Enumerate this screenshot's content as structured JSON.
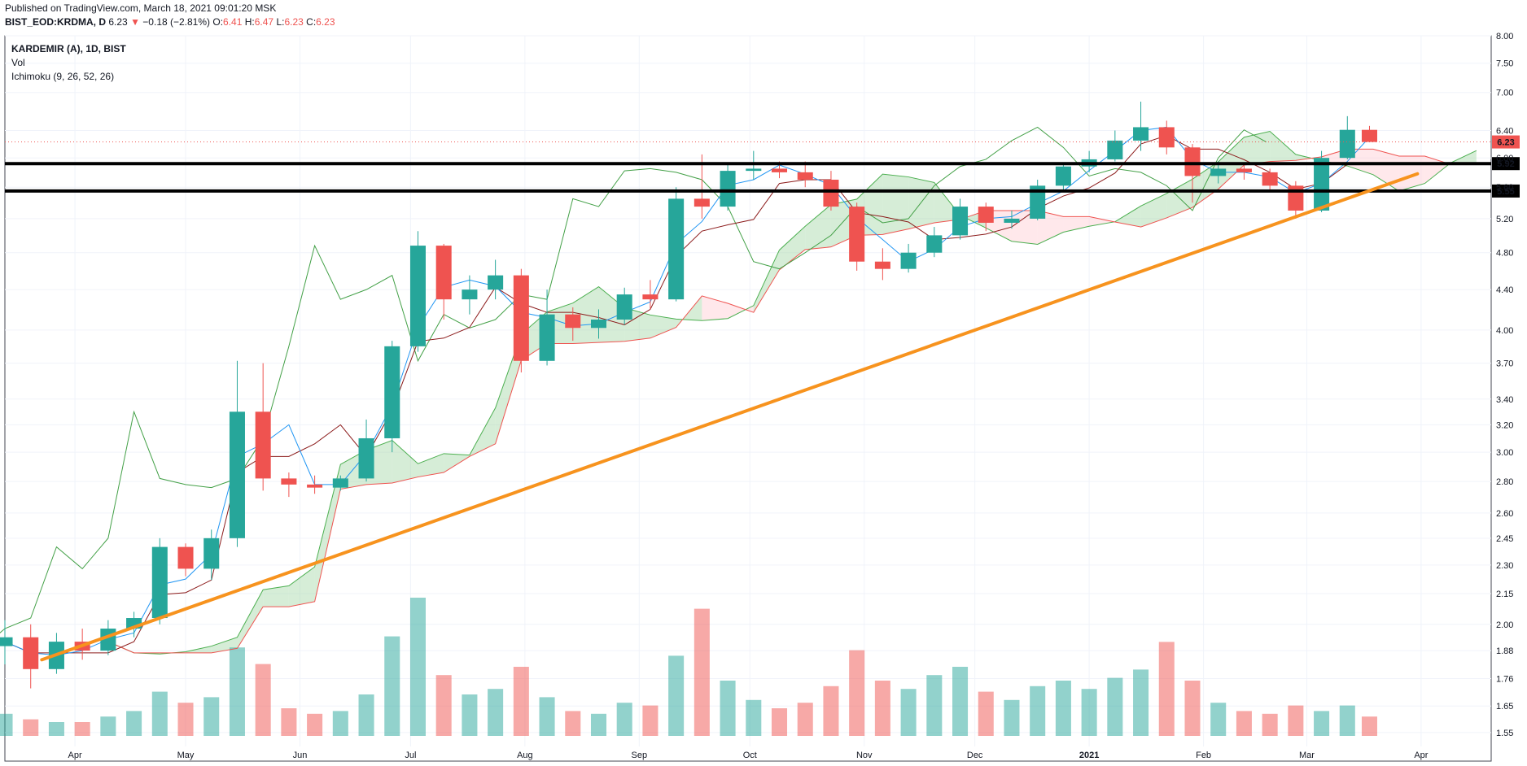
{
  "header": {
    "published": "Published on TradingView.com, March 18, 2021 09:01:20 MSK",
    "symbol": "BIST_EOD:KRDMA, D",
    "last": "6.23",
    "arrow": "▼",
    "change": "−0.18 (−2.81%)",
    "o_label": "O:",
    "o_val": "6.41",
    "h_label": "H:",
    "h_val": "6.47",
    "l_label": "L:",
    "l_val": "6.23",
    "c_label": "C:",
    "c_val": "6.23"
  },
  "legend": {
    "title": "KARDEMIR (A), 1D, BIST",
    "vol": "Vol",
    "ichimoku": "Ichimoku (9, 26, 52, 26)"
  },
  "colors": {
    "up": "#26a69a",
    "down": "#ef5350",
    "tenkan": "#2196f3",
    "kijun": "#8b1a1a",
    "lagging": "#43a047",
    "span_a": "#4caf50",
    "span_b": "#ef5350",
    "cloud_up": "#a5d6a7",
    "cloud_down": "#ffcdd2",
    "trendline": "#f7931e",
    "level": "#000000"
  },
  "chart_data": {
    "type": "candlestick",
    "title": "KARDEMIR (A), 1D, BIST",
    "y_scale": "log",
    "ylim": [
      1.5,
      8.0
    ],
    "y_ticks": [
      "8.00",
      "7.50",
      "7.00",
      "6.40",
      "6.00",
      "5.60",
      "5.20",
      "4.80",
      "4.40",
      "4.00",
      "3.70",
      "3.40",
      "3.20",
      "3.00",
      "2.80",
      "2.60",
      "2.45",
      "2.30",
      "2.15",
      "2.00",
      "1.88",
      "1.76",
      "1.65",
      "1.55"
    ],
    "x_ticks": [
      "Apr",
      "May",
      "Jun",
      "Jul",
      "Aug",
      "Sep",
      "Oct",
      "Nov",
      "Dec",
      "2021",
      "Feb",
      "Mar",
      "Apr"
    ],
    "x_range": [
      "2020-03-13",
      "2021-04-20"
    ],
    "last_price": {
      "value": 6.23,
      "label": "6.23"
    },
    "horizontal_levels": [
      {
        "value": 5.92,
        "label": "5.92"
      },
      {
        "value": 5.55,
        "label": "5.55"
      }
    ],
    "trendline": {
      "start": [
        "2020-03-23",
        1.84
      ],
      "end": [
        "2021-03-31",
        5.78
      ]
    },
    "ohlc": [
      {
        "date": "2020-03-13",
        "open": 1.9,
        "high": 2.02,
        "low": 1.82,
        "close": 1.94
      },
      {
        "date": "2020-03-20",
        "open": 1.94,
        "high": 2.0,
        "low": 1.72,
        "close": 1.8
      },
      {
        "date": "2020-03-27",
        "open": 1.8,
        "high": 1.96,
        "low": 1.78,
        "close": 1.92
      },
      {
        "date": "2020-04-03",
        "open": 1.92,
        "high": 1.98,
        "low": 1.84,
        "close": 1.88
      },
      {
        "date": "2020-04-10",
        "open": 1.88,
        "high": 2.02,
        "low": 1.86,
        "close": 1.98
      },
      {
        "date": "2020-04-17",
        "open": 1.98,
        "high": 2.06,
        "low": 1.94,
        "close": 2.03
      },
      {
        "date": "2020-04-24",
        "open": 2.03,
        "high": 2.45,
        "low": 2.0,
        "close": 2.4
      },
      {
        "date": "2020-05-01",
        "open": 2.4,
        "high": 2.42,
        "low": 2.24,
        "close": 2.28
      },
      {
        "date": "2020-05-08",
        "open": 2.28,
        "high": 2.5,
        "low": 2.22,
        "close": 2.45
      },
      {
        "date": "2020-05-15",
        "open": 2.45,
        "high": 3.72,
        "low": 2.4,
        "close": 3.3
      },
      {
        "date": "2020-05-22",
        "open": 3.3,
        "high": 3.7,
        "low": 2.74,
        "close": 2.82
      },
      {
        "date": "2020-05-29",
        "open": 2.82,
        "high": 2.86,
        "low": 2.7,
        "close": 2.78
      },
      {
        "date": "2020-06-05",
        "open": 2.78,
        "high": 2.84,
        "low": 2.72,
        "close": 2.76
      },
      {
        "date": "2020-06-12",
        "open": 2.76,
        "high": 2.84,
        "low": 2.74,
        "close": 2.82
      },
      {
        "date": "2020-06-19",
        "open": 2.82,
        "high": 3.24,
        "low": 2.8,
        "close": 3.1
      },
      {
        "date": "2020-06-26",
        "open": 3.1,
        "high": 3.9,
        "low": 3.0,
        "close": 3.85
      },
      {
        "date": "2020-07-03",
        "open": 3.85,
        "high": 5.05,
        "low": 3.8,
        "close": 4.88
      },
      {
        "date": "2020-07-10",
        "open": 4.88,
        "high": 4.9,
        "low": 4.1,
        "close": 4.3
      },
      {
        "date": "2020-07-17",
        "open": 4.3,
        "high": 4.55,
        "low": 4.15,
        "close": 4.4
      },
      {
        "date": "2020-07-24",
        "open": 4.4,
        "high": 4.72,
        "low": 4.3,
        "close": 4.55
      },
      {
        "date": "2020-07-31",
        "open": 4.55,
        "high": 4.62,
        "low": 3.62,
        "close": 3.72
      },
      {
        "date": "2020-08-07",
        "open": 3.72,
        "high": 4.4,
        "low": 3.68,
        "close": 4.15
      },
      {
        "date": "2020-08-14",
        "open": 4.15,
        "high": 4.22,
        "low": 3.9,
        "close": 4.02
      },
      {
        "date": "2020-08-21",
        "open": 4.02,
        "high": 4.2,
        "low": 3.92,
        "close": 4.1
      },
      {
        "date": "2020-08-28",
        "open": 4.1,
        "high": 4.42,
        "low": 4.05,
        "close": 4.35
      },
      {
        "date": "2020-09-04",
        "open": 4.35,
        "high": 4.5,
        "low": 4.2,
        "close": 4.3
      },
      {
        "date": "2020-09-11",
        "open": 4.3,
        "high": 5.6,
        "low": 4.28,
        "close": 5.45
      },
      {
        "date": "2020-09-18",
        "open": 5.45,
        "high": 6.05,
        "low": 5.2,
        "close": 5.35
      },
      {
        "date": "2020-09-25",
        "open": 5.35,
        "high": 5.9,
        "low": 5.3,
        "close": 5.82
      },
      {
        "date": "2020-10-02",
        "open": 5.82,
        "high": 6.1,
        "low": 5.7,
        "close": 5.85
      },
      {
        "date": "2020-10-09",
        "open": 5.85,
        "high": 5.95,
        "low": 5.72,
        "close": 5.8
      },
      {
        "date": "2020-10-16",
        "open": 5.8,
        "high": 5.95,
        "low": 5.6,
        "close": 5.7
      },
      {
        "date": "2020-10-23",
        "open": 5.7,
        "high": 5.82,
        "low": 5.3,
        "close": 5.35
      },
      {
        "date": "2020-10-30",
        "open": 5.35,
        "high": 5.4,
        "low": 4.6,
        "close": 4.7
      },
      {
        "date": "2020-11-06",
        "open": 4.7,
        "high": 4.85,
        "low": 4.5,
        "close": 4.62
      },
      {
        "date": "2020-11-13",
        "open": 4.62,
        "high": 4.9,
        "low": 4.58,
        "close": 4.8
      },
      {
        "date": "2020-11-20",
        "open": 4.8,
        "high": 5.1,
        "low": 4.75,
        "close": 5.0
      },
      {
        "date": "2020-11-27",
        "open": 5.0,
        "high": 5.45,
        "low": 4.95,
        "close": 5.35
      },
      {
        "date": "2020-12-04",
        "open": 5.35,
        "high": 5.4,
        "low": 5.05,
        "close": 5.15
      },
      {
        "date": "2020-12-11",
        "open": 5.15,
        "high": 5.3,
        "low": 5.08,
        "close": 5.2
      },
      {
        "date": "2020-12-18",
        "open": 5.2,
        "high": 5.7,
        "low": 5.18,
        "close": 5.62
      },
      {
        "date": "2020-12-25",
        "open": 5.62,
        "high": 5.92,
        "low": 5.55,
        "close": 5.88
      },
      {
        "date": "2021-01-01",
        "open": 5.88,
        "high": 6.1,
        "low": 5.8,
        "close": 5.98
      },
      {
        "date": "2021-01-08",
        "open": 5.98,
        "high": 6.4,
        "low": 5.95,
        "close": 6.25
      },
      {
        "date": "2021-01-15",
        "open": 6.25,
        "high": 6.85,
        "low": 6.1,
        "close": 6.45
      },
      {
        "date": "2021-01-22",
        "open": 6.45,
        "high": 6.55,
        "low": 6.05,
        "close": 6.15
      },
      {
        "date": "2021-01-29",
        "open": 6.15,
        "high": 6.2,
        "low": 5.4,
        "close": 5.75
      },
      {
        "date": "2021-02-05",
        "open": 5.75,
        "high": 5.95,
        "low": 5.65,
        "close": 5.85
      },
      {
        "date": "2021-02-12",
        "open": 5.85,
        "high": 5.92,
        "low": 5.7,
        "close": 5.8
      },
      {
        "date": "2021-02-19",
        "open": 5.8,
        "high": 5.85,
        "low": 5.55,
        "close": 5.62
      },
      {
        "date": "2021-02-26",
        "open": 5.62,
        "high": 5.68,
        "low": 5.2,
        "close": 5.3
      },
      {
        "date": "2021-03-05",
        "open": 5.3,
        "high": 6.1,
        "low": 5.28,
        "close": 6.0
      },
      {
        "date": "2021-03-12",
        "open": 6.0,
        "high": 6.62,
        "low": 5.98,
        "close": 6.41
      },
      {
        "date": "2021-03-18",
        "open": 6.41,
        "high": 6.47,
        "low": 6.23,
        "close": 6.23
      }
    ],
    "volume_relative": [
      0.8,
      0.6,
      0.5,
      0.5,
      0.7,
      0.9,
      1.6,
      1.2,
      1.4,
      3.2,
      2.6,
      1.0,
      0.8,
      0.9,
      1.5,
      3.6,
      5.0,
      2.2,
      1.5,
      1.7,
      2.5,
      1.4,
      0.9,
      0.8,
      1.2,
      1.1,
      2.9,
      4.6,
      2.0,
      1.3,
      1.0,
      1.2,
      1.8,
      3.1,
      2.0,
      1.7,
      2.2,
      2.5,
      1.6,
      1.3,
      1.8,
      2.0,
      1.7,
      2.1,
      2.4,
      3.4,
      2.0,
      1.2,
      0.9,
      0.8,
      1.1,
      0.9,
      1.1,
      0.7
    ]
  }
}
